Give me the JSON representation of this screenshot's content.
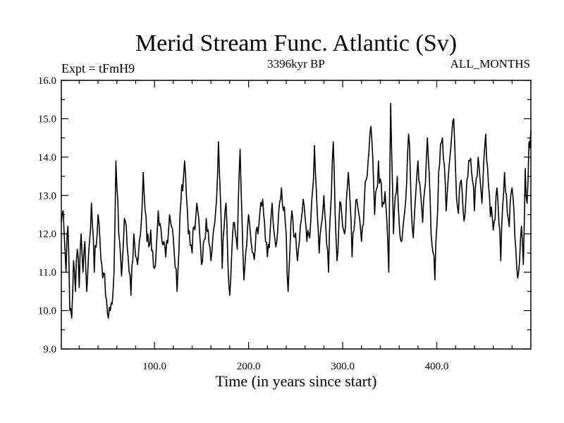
{
  "chart_data": {
    "type": "line",
    "title": "Merid Stream Func. Atlantic (Sv)",
    "subtitle_left": "Expt = tFmH9",
    "subtitle_center": "3396kyr BP",
    "subtitle_right": "ALL_MONTHS",
    "xlabel": "Time (in years since start)",
    "ylabel": "",
    "xlim": [
      1,
      500
    ],
    "ylim": [
      9.0,
      16.0
    ],
    "xticks": [
      100.0,
      200.0,
      300.0,
      400.0
    ],
    "xtick_labels": [
      "100.0",
      "200.0",
      "300.0",
      "400.0"
    ],
    "yticks": [
      9.0,
      10.0,
      11.0,
      12.0,
      13.0,
      14.0,
      15.0,
      16.0
    ],
    "ytick_labels": [
      "9.0",
      "10.0",
      "11.0",
      "12.0",
      "13.0",
      "14.0",
      "15.0",
      "16.0"
    ],
    "grid": false,
    "series": [
      {
        "name": "Merid Stream Func. Atlantic",
        "color": "#000000",
        "x": [
          1,
          500
        ],
        "anchors": [
          [
            1,
            12.3
          ],
          [
            3,
            12.6
          ],
          [
            6,
            11.0
          ],
          [
            8,
            12.2
          ],
          [
            10,
            10.0
          ],
          [
            12,
            9.8
          ],
          [
            14,
            11.3
          ],
          [
            16,
            10.5
          ],
          [
            18,
            11.6
          ],
          [
            20,
            10.6
          ],
          [
            22,
            12.0
          ],
          [
            24,
            11.0
          ],
          [
            26,
            11.8
          ],
          [
            28,
            10.5
          ],
          [
            30,
            11.5
          ],
          [
            33,
            12.8
          ],
          [
            36,
            11.0
          ],
          [
            40,
            12.5
          ],
          [
            44,
            11.2
          ],
          [
            48,
            10.4
          ],
          [
            51,
            9.8
          ],
          [
            54,
            10.2
          ],
          [
            57,
            11.0
          ],
          [
            59,
            13.9
          ],
          [
            62,
            12.0
          ],
          [
            65,
            10.9
          ],
          [
            68,
            12.4
          ],
          [
            72,
            11.4
          ],
          [
            75,
            10.4
          ],
          [
            78,
            12.0
          ],
          [
            82,
            11.2
          ],
          [
            86,
            12.3
          ],
          [
            88,
            13.6
          ],
          [
            92,
            11.8
          ],
          [
            96,
            12.1
          ],
          [
            100,
            11.1
          ],
          [
            104,
            12.6
          ],
          [
            108,
            11.8
          ],
          [
            112,
            11.4
          ],
          [
            116,
            12.5
          ],
          [
            120,
            11.9
          ],
          [
            124,
            10.5
          ],
          [
            128,
            12.8
          ],
          [
            132,
            13.9
          ],
          [
            136,
            12.0
          ],
          [
            140,
            11.5
          ],
          [
            145,
            12.8
          ],
          [
            150,
            11.2
          ],
          [
            155,
            12.4
          ],
          [
            160,
            11.3
          ],
          [
            165,
            12.6
          ],
          [
            168,
            14.4
          ],
          [
            172,
            11.1
          ],
          [
            176,
            12.8
          ],
          [
            180,
            10.4
          ],
          [
            184,
            12.3
          ],
          [
            188,
            11.6
          ],
          [
            191,
            14.2
          ],
          [
            195,
            10.8
          ],
          [
            200,
            12.5
          ],
          [
            205,
            11.5
          ],
          [
            210,
            12.0
          ],
          [
            215,
            12.9
          ],
          [
            220,
            11.4
          ],
          [
            225,
            12.8
          ],
          [
            230,
            11.8
          ],
          [
            235,
            13.2
          ],
          [
            240,
            12.0
          ],
          [
            242,
            10.5
          ],
          [
            246,
            12.6
          ],
          [
            252,
            11.3
          ],
          [
            258,
            12.9
          ],
          [
            262,
            11.8
          ],
          [
            266,
            12.3
          ],
          [
            270,
            14.3
          ],
          [
            275,
            11.5
          ],
          [
            280,
            13.0
          ],
          [
            285,
            11.0
          ],
          [
            290,
            14.4
          ],
          [
            294,
            11.3
          ],
          [
            298,
            12.8
          ],
          [
            302,
            12.0
          ],
          [
            306,
            13.6
          ],
          [
            310,
            11.4
          ],
          [
            315,
            12.9
          ],
          [
            320,
            11.8
          ],
          [
            325,
            13.4
          ],
          [
            330,
            14.8
          ],
          [
            334,
            12.5
          ],
          [
            338,
            13.9
          ],
          [
            342,
            12.7
          ],
          [
            345,
            13.1
          ],
          [
            349,
            11.0
          ],
          [
            351,
            15.4
          ],
          [
            354,
            12.0
          ],
          [
            358,
            13.5
          ],
          [
            362,
            11.8
          ],
          [
            366,
            12.6
          ],
          [
            370,
            14.6
          ],
          [
            375,
            11.9
          ],
          [
            380,
            13.9
          ],
          [
            385,
            12.3
          ],
          [
            390,
            14.5
          ],
          [
            395,
            11.7
          ],
          [
            398,
            10.8
          ],
          [
            402,
            13.6
          ],
          [
            406,
            14.5
          ],
          [
            410,
            12.6
          ],
          [
            414,
            14.0
          ],
          [
            418,
            15.0
          ],
          [
            422,
            12.7
          ],
          [
            426,
            13.4
          ],
          [
            430,
            12.5
          ],
          [
            435,
            13.9
          ],
          [
            440,
            12.6
          ],
          [
            444,
            14.0
          ],
          [
            448,
            12.8
          ],
          [
            452,
            14.6
          ],
          [
            456,
            13.0
          ],
          [
            460,
            12.1
          ],
          [
            464,
            13.2
          ],
          [
            468,
            11.3
          ],
          [
            472,
            13.6
          ],
          [
            476,
            12.4
          ],
          [
            480,
            13.2
          ],
          [
            484,
            11.6
          ],
          [
            487,
            11.0
          ],
          [
            490,
            12.2
          ],
          [
            492,
            11.2
          ],
          [
            494,
            13.7
          ],
          [
            496,
            12.8
          ],
          [
            498,
            14.4
          ],
          [
            500,
            14.7
          ]
        ]
      }
    ]
  }
}
